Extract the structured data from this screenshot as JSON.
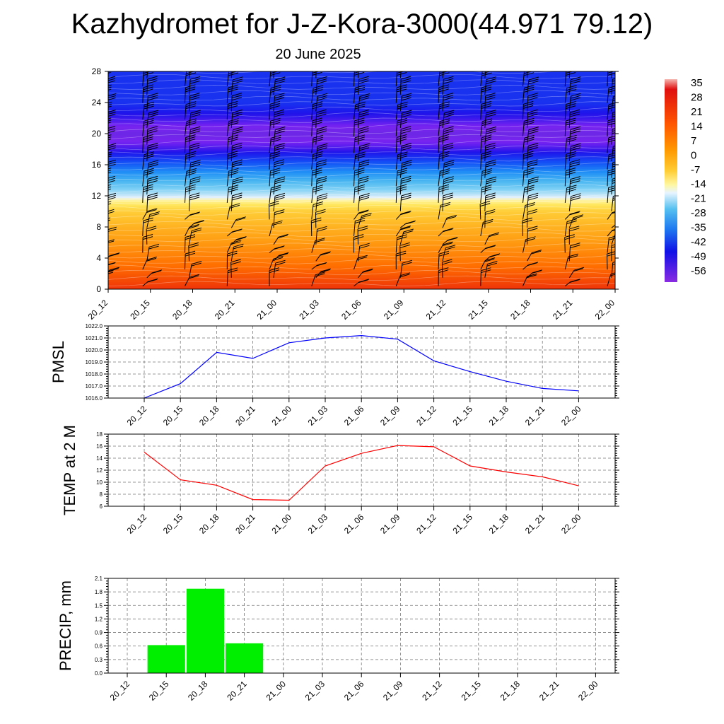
{
  "title": "Kazhydromet for J-Z-Kora-3000(44.971 79.12)",
  "subtitle": "20 June 2025",
  "chart_data": [
    {
      "type": "heatmap",
      "xlabel": "",
      "ylabel": "",
      "x_ticks": [
        "20_12",
        "20_15",
        "20_18",
        "20_21",
        "21_00",
        "21_03",
        "21_06",
        "21_09",
        "21_12",
        "21_15",
        "21_18",
        "21_21",
        "22_00"
      ],
      "y_ticks": [
        0,
        4,
        8,
        12,
        16,
        20,
        24,
        28
      ],
      "ylim": [
        0,
        28
      ],
      "colorbar": {
        "labels": [
          35,
          28,
          21,
          14,
          7,
          0,
          -7,
          -14,
          -21,
          -28,
          -35,
          -42,
          -49,
          -56
        ],
        "range": [
          -60,
          38
        ]
      },
      "temperature_profile": {
        "levels": [
          0,
          2,
          4,
          6,
          8,
          10,
          11,
          12,
          14,
          16,
          18,
          20,
          22,
          24,
          26,
          28
        ],
        "values": [
          20,
          16,
          12,
          8,
          4,
          -1,
          -8,
          -16,
          -28,
          -40,
          -52,
          -60,
          -52,
          -46,
          -46,
          -46
        ]
      },
      "wind_barbs": true
    },
    {
      "type": "line",
      "ylabel": "PMSL",
      "categories": [
        "20_12",
        "20_15",
        "20_18",
        "20_21",
        "21_00",
        "21_03",
        "21_06",
        "21_09",
        "21_12",
        "21_15",
        "21_18",
        "21_21",
        "22_00"
      ],
      "values": [
        1016.0,
        1017.2,
        1019.8,
        1019.3,
        1020.6,
        1021.0,
        1021.2,
        1020.9,
        1019.1,
        1018.2,
        1017.4,
        1016.8,
        1016.6
      ],
      "y_ticks": [
        "1016.0",
        "1017.0",
        "1018.0",
        "1019.0",
        "1020.0",
        "1021.0",
        "1022.0"
      ],
      "ylim": [
        1016.0,
        1022.0
      ],
      "color": "#0000ff"
    },
    {
      "type": "line",
      "ylabel": "TEMP at 2 M",
      "categories": [
        "20_12",
        "20_15",
        "20_18",
        "20_21",
        "21_00",
        "21_03",
        "21_06",
        "21_09",
        "21_12",
        "21_15",
        "21_18",
        "21_21",
        "22_00"
      ],
      "values": [
        15.0,
        10.4,
        9.5,
        7.1,
        7.0,
        12.7,
        14.8,
        16.1,
        15.9,
        12.7,
        11.7,
        10.9,
        9.4
      ],
      "y_ticks": [
        "6",
        "8",
        "10",
        "12",
        "14",
        "16",
        "18"
      ],
      "ylim": [
        6,
        18
      ],
      "color": "#ff0000"
    },
    {
      "type": "bar",
      "ylabel": "PRECIP, mm",
      "categories": [
        "20_12",
        "20_15",
        "20_18",
        "20_21",
        "21_00",
        "21_03",
        "21_06",
        "21_09",
        "21_12",
        "21_15",
        "21_18",
        "21_21",
        "22_00"
      ],
      "values": [
        0,
        0.62,
        1.87,
        0.66,
        0,
        0,
        0,
        0,
        0,
        0,
        0,
        0,
        0
      ],
      "y_ticks": [
        "0.0",
        "0.3",
        "0.6",
        "0.9",
        "1.2",
        "1.5",
        "1.8",
        "2.1"
      ],
      "ylim": [
        0,
        2.1
      ],
      "color": "#00ee00"
    }
  ]
}
